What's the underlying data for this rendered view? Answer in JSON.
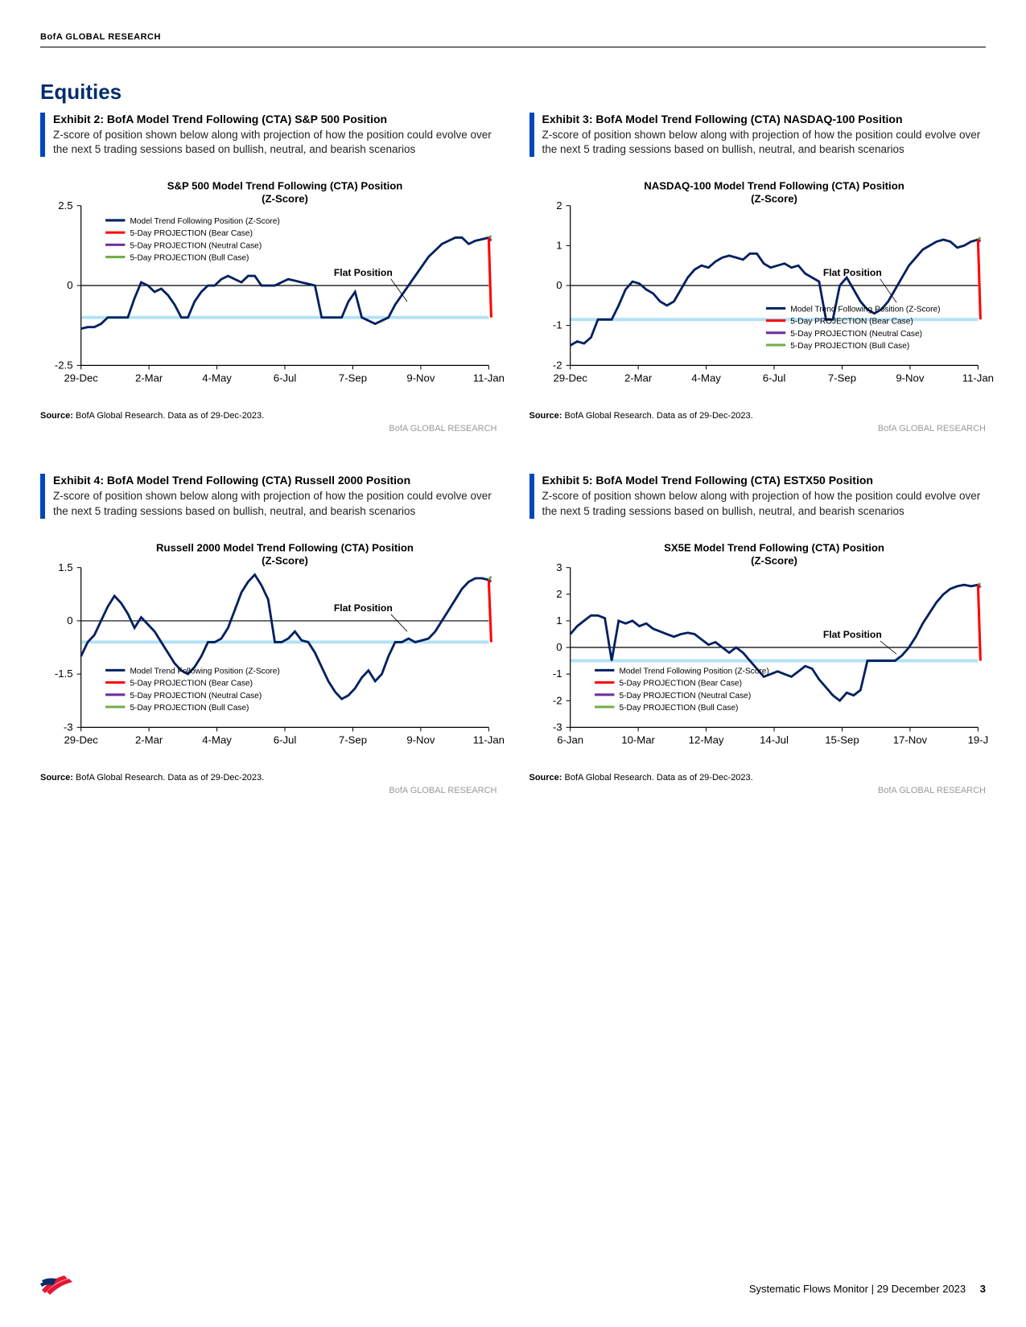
{
  "header": {
    "brand": "BofA GLOBAL RESEARCH"
  },
  "section": {
    "title": "Equities"
  },
  "legend_labels": {
    "pos": "Model Trend Following Position (Z-Score)",
    "bear": "5-Day PROJECTION (Bear Case)",
    "neutral": "5-Day PROJECTION (Neutral Case)",
    "bull": "5-Day PROJECTION (Bull Case)"
  },
  "colors": {
    "series": "#002060",
    "bear": "#ff0000",
    "neutral": "#7030a0",
    "bull": "#70ad47",
    "flat_band": "#b5e2f5",
    "axis": "#000000",
    "grid": "#d0d0d0",
    "accent": "#0047bb",
    "attr_text": "#9a9a9a"
  },
  "flat_label": "Flat Position",
  "source_text": "BofA Global Research. Data as of 29-Dec-2023.",
  "source_prefix": "Source:",
  "attribution": "BofA GLOBAL RESEARCH",
  "x_labels_a": [
    "29-Dec",
    "2-Mar",
    "4-May",
    "6-Jul",
    "7-Sep",
    "9-Nov",
    "11-Jan"
  ],
  "x_labels_b": [
    "6-Jan",
    "10-Mar",
    "12-May",
    "14-Jul",
    "15-Sep",
    "17-Nov",
    "19-J"
  ],
  "exhibits": [
    {
      "id": "ex2",
      "title": "Exhibit 2: BofA Model Trend Following (CTA) S&P 500 Position",
      "sub": "Z-score of position shown below along with projection of how the position could evolve over the next 5 trading sessions based on bullish, neutral, and bearish scenarios",
      "chart_title": "S&P 500 Model Trend Following (CTA) Position (Z-Score)",
      "ymin": -2.5,
      "ymax": 2.5,
      "yticks": [
        -2.5,
        0,
        2.5
      ],
      "flat_band": [
        -1.0,
        0.0
      ],
      "legend_pos": "top-left",
      "x_labels": "a",
      "series": [
        -1.35,
        -1.3,
        -1.3,
        -1.2,
        -1.0,
        -1.0,
        -1.0,
        -1.0,
        -0.4,
        0.1,
        0.0,
        -0.2,
        -0.1,
        -0.3,
        -0.6,
        -1.0,
        -1.0,
        -0.5,
        -0.2,
        0.0,
        0.0,
        0.2,
        0.3,
        0.2,
        0.1,
        0.3,
        0.3,
        0.0,
        0.0,
        0.0,
        0.1,
        0.2,
        0.15,
        0.1,
        0.05,
        0.0,
        -1.0,
        -1.0,
        -1.0,
        -1.0,
        -0.5,
        -0.2,
        -1.0,
        -1.1,
        -1.2,
        -1.1,
        -1.0,
        -0.6,
        -0.3,
        0.0,
        0.3,
        0.6,
        0.9,
        1.1,
        1.3,
        1.4,
        1.5,
        1.5,
        1.3,
        1.4,
        1.45,
        1.5
      ],
      "proj": {
        "bear": -1.0,
        "neutral": 1.4,
        "bull": 1.55
      }
    },
    {
      "id": "ex3",
      "title": "Exhibit 3: BofA Model Trend Following (CTA) NASDAQ-100 Position",
      "sub": "Z-score of position shown below along with projection of how the position could evolve over the next 5 trading sessions based on bullish, neutral, and bearish scenarios",
      "chart_title": "NASDAQ-100 Model Trend Following (CTA) Position (Z-Score)",
      "ymin": -2.0,
      "ymax": 2.0,
      "yticks": [
        -2,
        -1,
        0,
        1,
        2
      ],
      "flat_band": [
        -0.85,
        0.0
      ],
      "legend_pos": "bottom-right",
      "x_labels": "a",
      "series": [
        -1.5,
        -1.4,
        -1.45,
        -1.3,
        -0.85,
        -0.85,
        -0.85,
        -0.5,
        -0.1,
        0.1,
        0.05,
        -0.1,
        -0.2,
        -0.4,
        -0.5,
        -0.4,
        -0.1,
        0.2,
        0.4,
        0.5,
        0.45,
        0.6,
        0.7,
        0.75,
        0.7,
        0.65,
        0.8,
        0.8,
        0.55,
        0.45,
        0.5,
        0.55,
        0.45,
        0.5,
        0.3,
        0.2,
        0.1,
        -0.85,
        -0.85,
        0.0,
        0.2,
        -0.1,
        -0.4,
        -0.6,
        -0.7,
        -0.6,
        -0.4,
        -0.1,
        0.2,
        0.5,
        0.7,
        0.9,
        1.0,
        1.1,
        1.15,
        1.1,
        0.95,
        1.0,
        1.1,
        1.15
      ],
      "proj": {
        "bear": -0.85,
        "neutral": 1.1,
        "bull": 1.2
      }
    },
    {
      "id": "ex4",
      "title": "Exhibit 4: BofA Model Trend Following (CTA) Russell 2000 Position",
      "sub": "Z-score of position shown below along with projection of how the position could evolve over the next 5 trading sessions based on bullish, neutral, and bearish scenarios",
      "chart_title": "Russell 2000 Model Trend Following (CTA) Position (Z-Score)",
      "ymin": -3.0,
      "ymax": 1.5,
      "yticks": [
        -3,
        -1.5,
        0,
        1.5
      ],
      "flat_band": [
        -0.6,
        0.0
      ],
      "legend_pos": "bottom-left",
      "x_labels": "a",
      "series": [
        -1.0,
        -0.6,
        -0.4,
        0.0,
        0.4,
        0.7,
        0.5,
        0.2,
        -0.2,
        0.1,
        -0.1,
        -0.3,
        -0.6,
        -0.9,
        -1.2,
        -1.4,
        -1.5,
        -1.3,
        -1.0,
        -0.6,
        -0.6,
        -0.5,
        -0.2,
        0.3,
        0.8,
        1.1,
        1.3,
        1.0,
        0.6,
        -0.6,
        -0.6,
        -0.5,
        -0.3,
        -0.55,
        -0.6,
        -0.9,
        -1.3,
        -1.7,
        -2.0,
        -2.2,
        -2.1,
        -1.9,
        -1.6,
        -1.4,
        -1.7,
        -1.5,
        -1.0,
        -0.6,
        -0.6,
        -0.5,
        -0.6,
        -0.55,
        -0.5,
        -0.3,
        0.0,
        0.3,
        0.6,
        0.9,
        1.1,
        1.2,
        1.2,
        1.15
      ],
      "proj": {
        "bear": -0.6,
        "neutral": 1.1,
        "bull": 1.25
      }
    },
    {
      "id": "ex5",
      "title": "Exhibit 5: BofA Model Trend Following (CTA) ESTX50 Position",
      "sub": "Z-score of position shown below along with projection of how the position could evolve over the next 5 trading sessions based on bullish, neutral, and bearish scenarios",
      "chart_title": "SX5E Model Trend Following (CTA) Position (Z-Score)",
      "ymin": -3.0,
      "ymax": 3.0,
      "yticks": [
        -3,
        -2,
        -1,
        0,
        1,
        2,
        3
      ],
      "flat_band": [
        -0.5,
        0.0
      ],
      "legend_pos": "bottom-left",
      "x_labels": "b",
      "series": [
        0.5,
        0.8,
        1.0,
        1.2,
        1.2,
        1.1,
        -0.5,
        1.0,
        0.9,
        1.0,
        0.8,
        0.9,
        0.7,
        0.6,
        0.5,
        0.4,
        0.5,
        0.55,
        0.5,
        0.3,
        0.1,
        0.2,
        0.0,
        -0.2,
        0.0,
        -0.2,
        -0.5,
        -0.8,
        -1.1,
        -1.0,
        -0.9,
        -1.0,
        -1.1,
        -0.9,
        -0.7,
        -0.8,
        -1.2,
        -1.5,
        -1.8,
        -2.0,
        -1.7,
        -1.8,
        -1.6,
        -0.5,
        -0.5,
        -0.5,
        -0.5,
        -0.5,
        -0.3,
        0.0,
        0.4,
        0.9,
        1.3,
        1.7,
        2.0,
        2.2,
        2.3,
        2.35,
        2.3,
        2.35
      ],
      "proj": {
        "bear": -0.5,
        "neutral": 2.25,
        "bull": 2.4
      }
    }
  ],
  "footer": {
    "doc": "Systematic Flows Monitor | 29 December 2023",
    "page": "3"
  }
}
